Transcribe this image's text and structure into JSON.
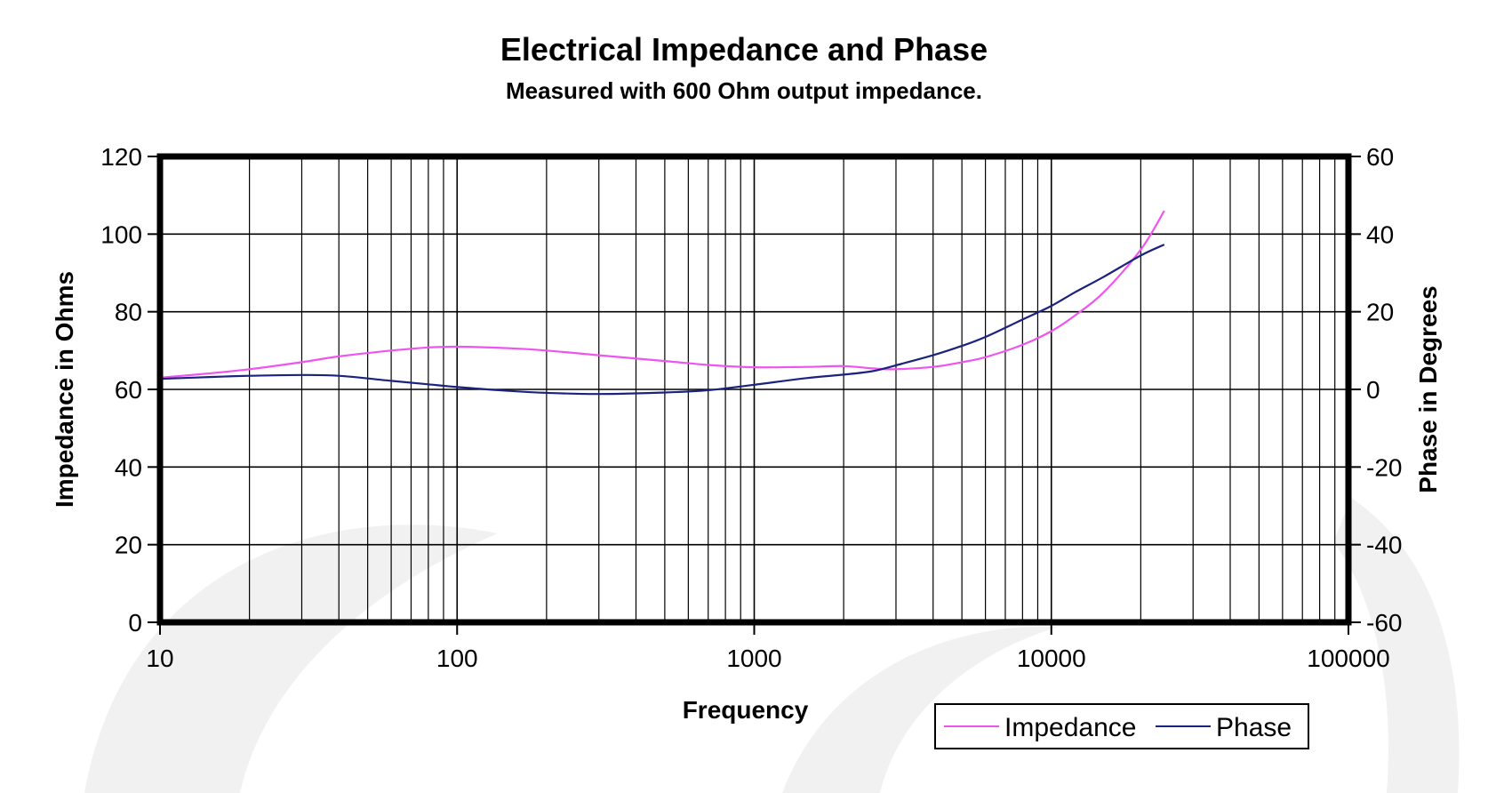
{
  "chart_data": {
    "type": "line",
    "title": "Electrical Impedance and Phase",
    "subtitle": "Measured with 600 Ohm output impedance.",
    "xlabel": "Frequency",
    "ylabel": "Impedance in Ohms",
    "y2label": "Phase in Degrees",
    "xscale": "log",
    "xlim": [
      10,
      100000
    ],
    "ylim": [
      0,
      120
    ],
    "y2lim": [
      -60,
      60
    ],
    "x_ticks": [
      "10",
      "100",
      "1000",
      "10000",
      "100000"
    ],
    "y_ticks": [
      "0",
      "20",
      "40",
      "60",
      "80",
      "100",
      "120"
    ],
    "y2_ticks": [
      "-60",
      "-40",
      "-20",
      "0",
      "20",
      "40",
      "60"
    ],
    "grid": true,
    "legend": "bottom-right",
    "series": [
      {
        "name": "Impedance",
        "axis": "left",
        "color": "#ee55ee",
        "x": [
          10,
          15,
          20,
          30,
          40,
          60,
          80,
          100,
          150,
          200,
          300,
          500,
          700,
          1000,
          1500,
          2000,
          2500,
          3000,
          4000,
          5000,
          6000,
          8000,
          10000,
          12000,
          15000,
          20000,
          24000
        ],
        "y": [
          63,
          64.2,
          65.2,
          67,
          68.5,
          70,
          70.8,
          71,
          70.6,
          70,
          68.8,
          67.3,
          66.3,
          65.7,
          65.8,
          66,
          65.4,
          65.2,
          65.8,
          67,
          68.3,
          71.5,
          75,
          79,
          85,
          96,
          106
        ]
      },
      {
        "name": "Phase",
        "axis": "right",
        "color": "#1a237e",
        "x": [
          10,
          15,
          20,
          30,
          40,
          60,
          80,
          100,
          150,
          200,
          300,
          500,
          700,
          1000,
          1500,
          2000,
          2500,
          3000,
          4000,
          5000,
          6000,
          8000,
          10000,
          12000,
          15000,
          20000,
          24000
        ],
        "y": [
          2.7,
          3.2,
          3.5,
          3.7,
          3.5,
          2.2,
          1.3,
          0.6,
          -0.4,
          -0.9,
          -1.2,
          -0.8,
          -0.2,
          1.2,
          2.9,
          3.8,
          4.7,
          6.2,
          8.8,
          11.2,
          13.5,
          18,
          21.5,
          25,
          29,
          34.5,
          37.3
        ]
      }
    ]
  }
}
